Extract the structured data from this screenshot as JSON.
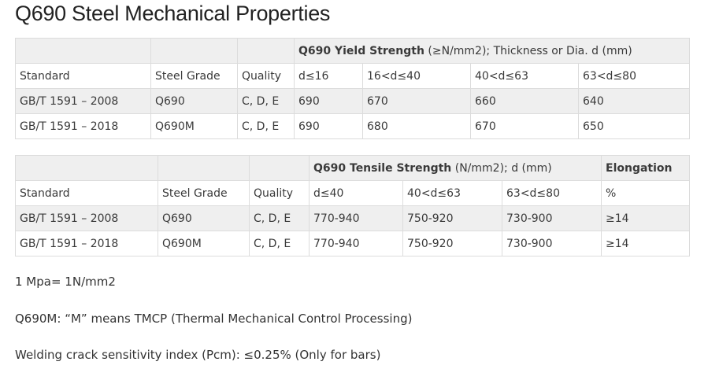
{
  "title": "Q690 Steel Mechanical Properties",
  "table1": {
    "group_header_bold": "Q690 Yield Strength",
    "group_header_rest": " (≥N/mm2); Thickness or Dia. d (mm)",
    "columns": [
      "Standard",
      "Steel Grade",
      "Quality",
      "d≤16",
      "16<d≤40",
      "40<d≤63",
      "63<d≤80"
    ],
    "rows": [
      [
        "GB/T 1591 – 2008",
        "Q690",
        "C, D, E",
        "690",
        "670",
        "660",
        "640"
      ],
      [
        "GB/T 1591 – 2018",
        "Q690M",
        "C, D, E",
        "690",
        "680",
        "670",
        "650"
      ]
    ]
  },
  "table2": {
    "group_header_bold": "Q690 Tensile Strength",
    "group_header_rest": " (N/mm2); d (mm)",
    "elongation_header": "Elongation",
    "columns": [
      "Standard",
      "Steel Grade",
      "Quality",
      "d≤40",
      "40<d≤63",
      "63<d≤80",
      "%"
    ],
    "rows": [
      [
        "GB/T 1591 – 2008",
        "Q690",
        "C, D, E",
        "770-940",
        "750-920",
        "730-900",
        "≥14"
      ],
      [
        "GB/T 1591 – 2018",
        "Q690M",
        "C, D, E",
        "770-940",
        "750-920",
        "730-900",
        "≥14"
      ]
    ]
  },
  "notes": [
    "1 Mpa= 1N/mm2",
    "Q690M: “M” means TMCP (Thermal Mechanical Control Processing)",
    "Welding crack sensitivity index (Pcm): ≤0.25% (Only for bars)"
  ]
}
